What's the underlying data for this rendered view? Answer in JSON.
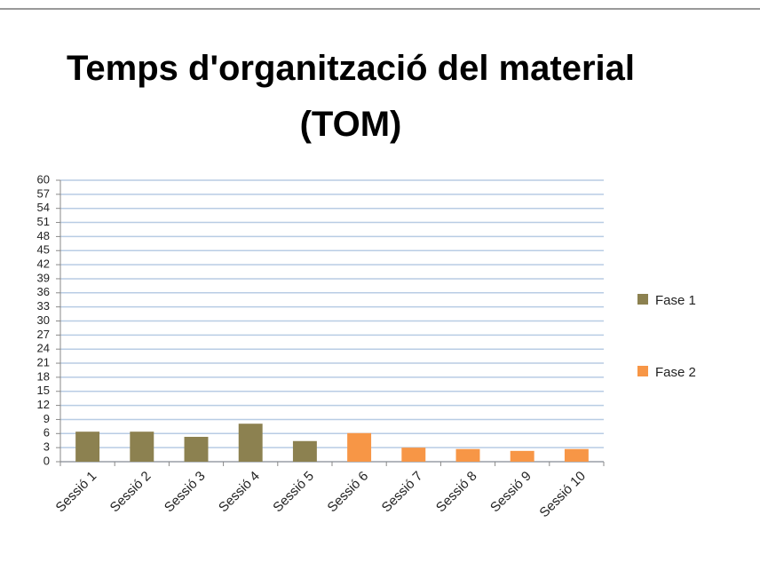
{
  "chart_data": {
    "type": "bar",
    "title": "Temps d'organització del material (TOM)",
    "categories": [
      "Sessió 1",
      "Sessió 2",
      "Sessió 3",
      "Sessió 4",
      "Sessió 5",
      "Sessió 6",
      "Sessió 7",
      "Sessió 8",
      "Sessió 9",
      "Sessió 10"
    ],
    "series": [
      {
        "name": "Fase 1",
        "color": "#8c8150",
        "values": [
          6.4,
          6.4,
          5.3,
          8.1,
          4.4,
          null,
          null,
          null,
          null,
          null
        ]
      },
      {
        "name": "Fase 2",
        "color": "#f79646",
        "values": [
          null,
          null,
          null,
          null,
          null,
          6.1,
          3.0,
          2.7,
          2.3,
          2.7
        ]
      }
    ],
    "ylim": [
      0,
      60
    ],
    "yticks": [
      0,
      3,
      6,
      9,
      12,
      15,
      18,
      21,
      24,
      27,
      30,
      33,
      36,
      39,
      42,
      45,
      48,
      51,
      54,
      57,
      60
    ],
    "grid": true,
    "legend": "right"
  }
}
